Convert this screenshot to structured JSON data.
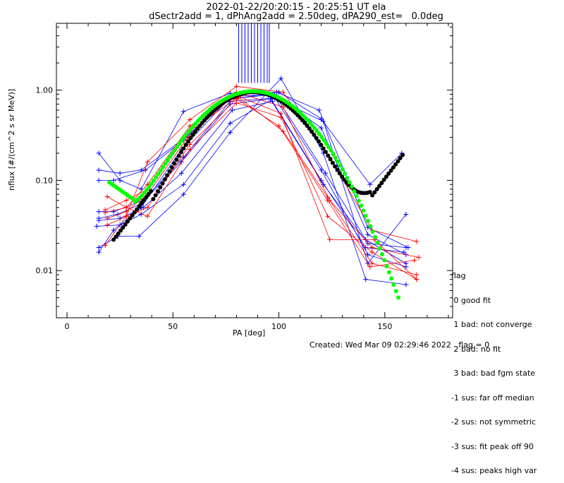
{
  "header": {
    "title_line1": "2022-01-22/20:20:15 - 20:25:51 UT ela",
    "title_line2": "dSectr2add = 1, dPhAng2add = 2.50deg, dPA290_est=   0.0deg"
  },
  "legend": {
    "heading": "flag",
    "items": [
      " 0 good fit",
      " 1 bad: not converge",
      " 2 bad: no fit",
      " 3 bad: bad fgm state",
      "-1 sus: far off median",
      "-2 sus: not symmetric",
      "-3 sus: fit peak off 90",
      "-4 sus: peaks high var"
    ]
  },
  "footer": {
    "created": "Created: Wed Mar 09 02:29:46 2022",
    "flag": "flag = 0"
  },
  "colors": {
    "blue": "#0000ff",
    "red": "#ff0000",
    "black": "#000000",
    "green": "#00ff00"
  },
  "chart_data": {
    "type": "scatter",
    "xlabel": "PA [deg]",
    "ylabel": "nflux [#/(cm^2 s sr MeV)]",
    "xlim": [
      -5,
      182
    ],
    "ylim": [
      0.003,
      5.5
    ],
    "yscale": "log",
    "xticks": [
      0,
      50,
      100,
      150
    ],
    "yticks": [
      {
        "value": 0.01,
        "label": "0.01"
      },
      {
        "value": 0.1,
        "label": "0.10"
      },
      {
        "value": 1.0,
        "label": "1.00"
      }
    ],
    "blue_series": [
      [
        [
          15,
          0.2
        ],
        [
          25,
          0.1
        ],
        [
          35,
          0.08
        ],
        [
          55,
          0.58
        ],
        [
          77,
          0.92
        ],
        [
          100,
          0.95
        ],
        [
          120,
          0.48
        ],
        [
          143,
          0.09
        ],
        [
          158,
          0.2
        ]
      ],
      [
        [
          15,
          0.13
        ],
        [
          25,
          0.12
        ],
        [
          35,
          0.13
        ],
        [
          56,
          0.3
        ],
        [
          78,
          0.85
        ],
        [
          98,
          0.9
        ],
        [
          120,
          0.38
        ],
        [
          142,
          0.025
        ],
        [
          160,
          0.015
        ]
      ],
      [
        [
          15,
          0.1
        ],
        [
          22,
          0.1
        ],
        [
          37,
          0.13
        ],
        [
          55,
          0.28
        ],
        [
          76,
          0.8
        ],
        [
          95,
          0.88
        ],
        [
          121,
          0.45
        ],
        [
          142,
          0.012
        ],
        [
          160,
          0.042
        ]
      ],
      [
        [
          15,
          0.045
        ],
        [
          22,
          0.045
        ],
        [
          36,
          0.06
        ],
        [
          55,
          0.18
        ],
        [
          77,
          0.75
        ],
        [
          99,
          0.82
        ],
        [
          122,
          0.12
        ],
        [
          141,
          0.022
        ],
        [
          160,
          0.012
        ]
      ],
      [
        [
          15,
          0.038
        ],
        [
          24,
          0.042
        ],
        [
          35,
          0.055
        ],
        [
          54,
          0.16
        ],
        [
          77,
          0.7
        ],
        [
          96,
          0.8
        ],
        [
          121,
          0.09
        ],
        [
          142,
          0.02
        ],
        [
          160,
          0.018
        ]
      ],
      [
        [
          15,
          0.036
        ],
        [
          25,
          0.038
        ],
        [
          36,
          0.05
        ],
        [
          54,
          0.12
        ],
        [
          78,
          0.6
        ],
        [
          97,
          0.75
        ],
        [
          120,
          0.1
        ],
        [
          141,
          0.018
        ],
        [
          159,
          0.016
        ]
      ],
      [
        [
          14,
          0.031
        ],
        [
          25,
          0.032
        ],
        [
          35,
          0.042
        ],
        [
          55,
          0.09
        ],
        [
          77,
          0.43
        ],
        [
          98,
          0.82
        ],
        [
          120,
          0.13
        ],
        [
          142,
          0.015
        ],
        [
          160,
          0.011
        ]
      ],
      [
        [
          15,
          0.018
        ],
        [
          24,
          0.024
        ],
        [
          34,
          0.024
        ],
        [
          55,
          0.07
        ],
        [
          77,
          0.34
        ],
        [
          101,
          1.35
        ],
        [
          121,
          0.2
        ],
        [
          141,
          0.008
        ],
        [
          160,
          0.007
        ]
      ],
      [
        [
          15,
          0.016
        ],
        [
          22,
          0.028
        ],
        [
          35,
          0.05
        ],
        [
          54,
          0.22
        ],
        [
          76,
          0.78
        ],
        [
          99,
          0.95
        ],
        [
          119,
          0.6
        ],
        [
          142,
          0.03
        ],
        [
          161,
          0.018
        ]
      ]
    ],
    "red_series": [
      [
        [
          18,
          0.019
        ],
        [
          28,
          0.04
        ],
        [
          38,
          0.16
        ],
        [
          58,
          0.47
        ],
        [
          80,
          1.1
        ],
        [
          102,
          0.95
        ],
        [
          124,
          0.18
        ],
        [
          144,
          0.028
        ],
        [
          165,
          0.021
        ]
      ],
      [
        [
          18,
          0.044
        ],
        [
          28,
          0.05
        ],
        [
          38,
          0.09
        ],
        [
          58,
          0.4
        ],
        [
          80,
          0.95
        ],
        [
          102,
          0.65
        ],
        [
          124,
          0.06
        ],
        [
          144,
          0.018
        ],
        [
          166,
          0.014
        ]
      ],
      [
        [
          18,
          0.047
        ],
        [
          28,
          0.06
        ],
        [
          38,
          0.08
        ],
        [
          58,
          0.35
        ],
        [
          81,
          0.85
        ],
        [
          101,
          0.55
        ],
        [
          124,
          0.022
        ],
        [
          145,
          0.022
        ],
        [
          165,
          0.008
        ]
      ],
      [
        [
          19,
          0.038
        ],
        [
          28,
          0.045
        ],
        [
          38,
          0.07
        ],
        [
          57,
          0.3
        ],
        [
          79,
          0.9
        ],
        [
          102,
          0.35
        ],
        [
          123,
          0.065
        ],
        [
          144,
          0.012
        ],
        [
          165,
          0.009
        ]
      ],
      [
        [
          19,
          0.032
        ],
        [
          28,
          0.04
        ],
        [
          38,
          0.05
        ],
        [
          58,
          0.25
        ],
        [
          80,
          0.8
        ],
        [
          100,
          0.4
        ],
        [
          123,
          0.06
        ],
        [
          143,
          0.011
        ],
        [
          164,
          0.013
        ]
      ],
      [
        [
          19,
          0.066
        ],
        [
          28,
          0.05
        ],
        [
          38,
          0.04
        ],
        [
          58,
          0.22
        ],
        [
          80,
          0.72
        ],
        [
          101,
          0.5
        ],
        [
          123,
          0.04
        ],
        [
          144,
          0.016
        ],
        [
          165,
          0.008
        ]
      ]
    ],
    "black_fit": {
      "peak_x": 88,
      "peak_y": 0.95,
      "x_range": [
        22,
        159
      ]
    },
    "green_fit": {
      "peak_x": 88,
      "peak_y": 0.97,
      "x_range": [
        20,
        157
      ]
    },
    "vertical_lines_x": [
      81,
      82.5,
      84,
      85.5,
      87,
      88.5,
      90,
      91.5,
      93,
      94.5,
      95.5
    ]
  }
}
